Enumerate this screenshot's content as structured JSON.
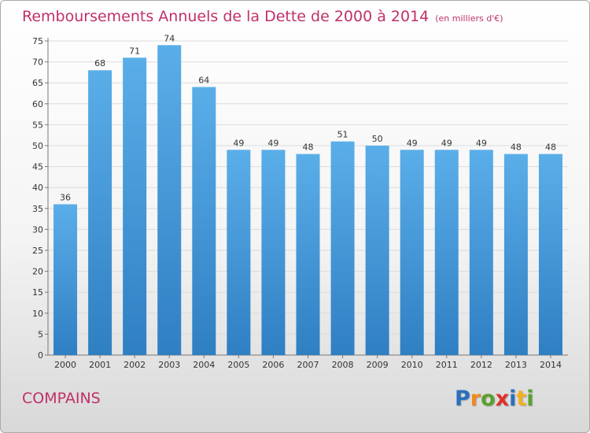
{
  "title": "Remboursements Annuels de la Dette de 2000 à 2014",
  "unit": "(en milliers d'€)",
  "commune": "COMPAINS",
  "logo": {
    "letters": [
      "P",
      "r",
      "o",
      "x",
      "i",
      "t",
      "i"
    ],
    "colors": [
      "#2a6fbf",
      "#f08a1e",
      "#5aa02c",
      "#e0312b",
      "#2a6fbf",
      "#f0b01e",
      "#5aa02c"
    ]
  },
  "colors": {
    "bar_top": "#5aaee8",
    "bar_bottom": "#2f7fc3",
    "title": "#c0306a"
  },
  "chart_data": {
    "type": "bar",
    "title": "Remboursements Annuels de la Dette de 2000 à 2014",
    "xlabel": "",
    "ylabel": "",
    "categories": [
      "2000",
      "2001",
      "2002",
      "2003",
      "2004",
      "2005",
      "2006",
      "2007",
      "2008",
      "2009",
      "2010",
      "2011",
      "2012",
      "2013",
      "2014"
    ],
    "values": [
      36,
      68,
      71,
      74,
      64,
      49,
      49,
      48,
      51,
      50,
      49,
      49,
      49,
      48,
      48
    ],
    "ylim": [
      0,
      75
    ],
    "yticks": [
      0,
      5,
      10,
      15,
      20,
      25,
      30,
      35,
      40,
      45,
      50,
      55,
      60,
      65,
      70,
      75
    ],
    "grid": true,
    "data_labels": true
  }
}
